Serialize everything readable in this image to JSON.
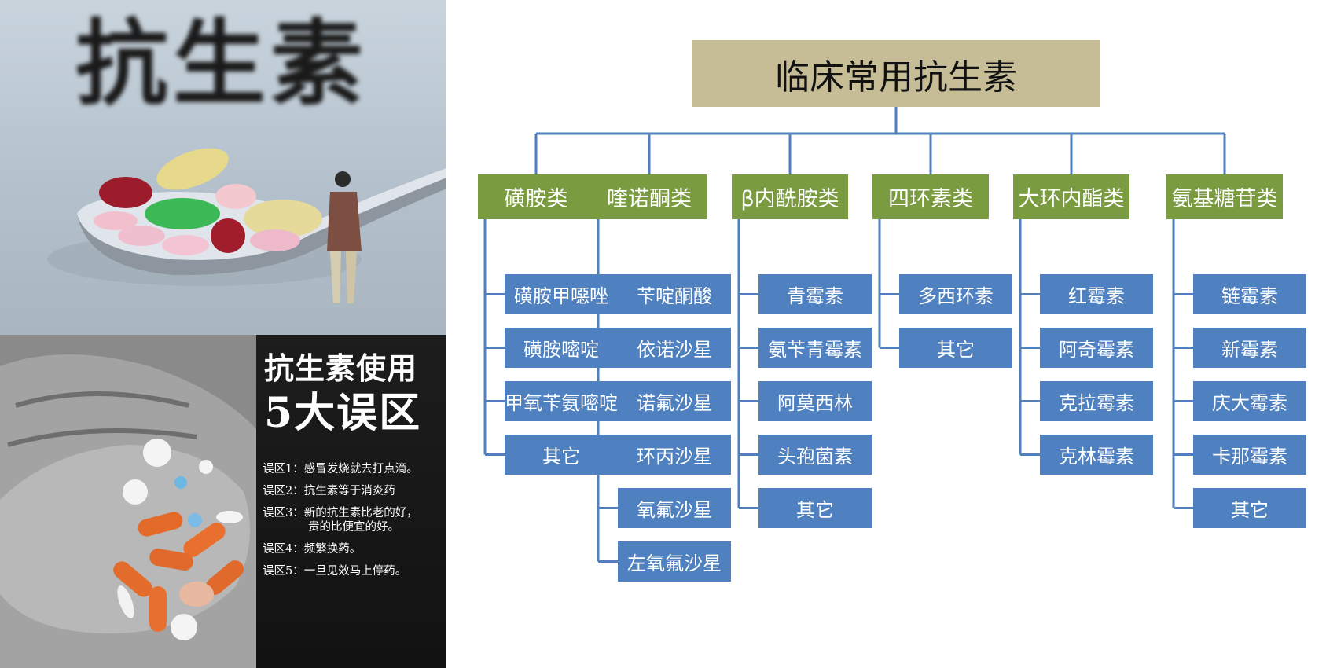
{
  "poster_top": {
    "title": "抗生素"
  },
  "poster_bottom": {
    "heading_line1": "抗生素使用",
    "heading_line2": "5大误区",
    "myths": [
      {
        "label": "误区1：",
        "text": "感冒发烧就去打点滴。"
      },
      {
        "label": "误区2：",
        "text": "抗生素等于消炎药"
      },
      {
        "label": "误区3：",
        "text": "新的抗生素比老的好，",
        "text2": "贵的比便宜的好。"
      },
      {
        "label": "误区4：",
        "text": "频繁换药。"
      },
      {
        "label": "误区5：",
        "text": "一旦见效马上停药。"
      }
    ]
  },
  "diagram": {
    "root": "临床常用抗生素",
    "colors": {
      "root": "#c6bd96",
      "category": "#7a9b3f",
      "item": "#4f80bf",
      "connector": "#4f7fbf"
    },
    "categories": [
      {
        "name": "磺胺类",
        "items": [
          "磺胺甲噁唑",
          "磺胺嘧啶",
          "甲氧苄氨嘧啶",
          "其它"
        ]
      },
      {
        "name": "喹诺酮类",
        "items": [
          "苄啶酮酸",
          "依诺沙星",
          "诺氟沙星",
          "环丙沙星",
          "氧氟沙星",
          "左氧氟沙星"
        ]
      },
      {
        "name": "β内酰胺类",
        "items": [
          "青霉素",
          "氨苄青霉素",
          "阿莫西林",
          "头孢菌素",
          "其它"
        ]
      },
      {
        "name": "四环素类",
        "items": [
          "多西环素",
          "其它"
        ]
      },
      {
        "name": "大环内酯类",
        "items": [
          "红霉素",
          "阿奇霉素",
          "克拉霉素",
          "克林霉素"
        ]
      },
      {
        "name": "氨基糖苷类",
        "items": [
          "链霉素",
          "新霉素",
          "庆大霉素",
          "卡那霉素",
          "其它"
        ]
      }
    ]
  }
}
